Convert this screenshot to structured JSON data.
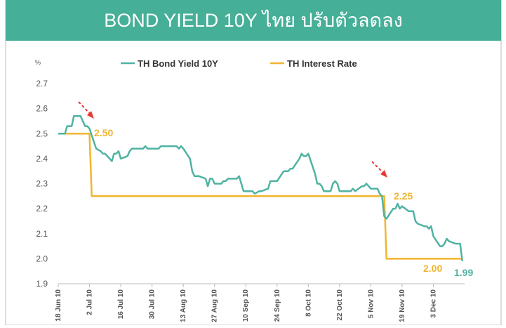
{
  "chart_data": {
    "type": "line",
    "title": "BOND YIELD 10Y ไทย ปรับตัวลดลง",
    "y_label": "%",
    "ylim": [
      1.9,
      2.7
    ],
    "yticks": [
      {
        "value": 1.9,
        "label": "1.9"
      },
      {
        "value": 2.0,
        "label": "2.0"
      },
      2.1,
      2.2,
      2.3,
      2.4,
      2.5,
      2.6,
      2.7
    ],
    "xlim": [
      "2010-06-18",
      "2010-12-17"
    ],
    "xticks": [
      {
        "value": "2010-06-18",
        "label": "18 Jun 10"
      },
      {
        "value": "2010-07-02",
        "label": "2 Jul 10"
      },
      {
        "value": "2010-07-16",
        "label": "16 Jul 10"
      },
      {
        "value": "2010-07-30",
        "label": "30 Jul 10"
      },
      {
        "value": "2010-08-13",
        "label": "13 Aug 10"
      },
      {
        "value": "2010-08-27",
        "label": "27 Aug 10"
      },
      {
        "value": "2010-09-10",
        "label": "10 Sep 10"
      },
      {
        "value": "2010-09-24",
        "label": "24 Sep 10"
      },
      {
        "value": "2010-10-08",
        "label": "8 Oct 10"
      },
      {
        "value": "2010-10-22",
        "label": "22 Oct 10"
      },
      {
        "value": "2010-11-05",
        "label": "5 Nov 10"
      },
      {
        "value": "2010-11-19",
        "label": "19 Nov 10"
      },
      {
        "value": "2010-12-03",
        "label": "3 Dec 10"
      }
    ],
    "legend": "top",
    "series": [
      {
        "name": "TH Bond Yield 10Y",
        "color": "#4fb3a2",
        "x": [
          "2010-06-18",
          "2010-06-21",
          "2010-06-22",
          "2010-06-24",
          "2010-06-25",
          "2010-06-28",
          "2010-06-29",
          "2010-06-30",
          "2010-07-01",
          "2010-07-02",
          "2010-07-05",
          "2010-07-07",
          "2010-07-08",
          "2010-07-09",
          "2010-07-12",
          "2010-07-13",
          "2010-07-14",
          "2010-07-15",
          "2010-07-16",
          "2010-07-19",
          "2010-07-20",
          "2010-07-21",
          "2010-07-22",
          "2010-07-26",
          "2010-07-27",
          "2010-07-28",
          "2010-07-30",
          "2010-08-02",
          "2010-08-03",
          "2010-08-05",
          "2010-08-10",
          "2010-08-11",
          "2010-08-12",
          "2010-08-13",
          "2010-08-16",
          "2010-08-17",
          "2010-08-18",
          "2010-08-20",
          "2010-08-23",
          "2010-08-24",
          "2010-08-25",
          "2010-08-26",
          "2010-08-27",
          "2010-08-30",
          "2010-08-31",
          "2010-09-01",
          "2010-09-02",
          "2010-09-03",
          "2010-09-06",
          "2010-09-07",
          "2010-09-08",
          "2010-09-09",
          "2010-09-13",
          "2010-09-14",
          "2010-09-16",
          "2010-09-17",
          "2010-09-20",
          "2010-09-21",
          "2010-09-22",
          "2010-09-24",
          "2010-09-27",
          "2010-09-28",
          "2010-09-29",
          "2010-09-30",
          "2010-10-01",
          "2010-10-04",
          "2010-10-05",
          "2010-10-06",
          "2010-10-07",
          "2010-10-08",
          "2010-10-11",
          "2010-10-12",
          "2010-10-13",
          "2010-10-14",
          "2010-10-15",
          "2010-10-18",
          "2010-10-19",
          "2010-10-20",
          "2010-10-21",
          "2010-10-22",
          "2010-10-25",
          "2010-10-27",
          "2010-10-28",
          "2010-10-29",
          "2010-11-01",
          "2010-11-02",
          "2010-11-03",
          "2010-11-04",
          "2010-11-05",
          "2010-11-08",
          "2010-11-09",
          "2010-11-10",
          "2010-11-11",
          "2010-11-12",
          "2010-11-15",
          "2010-11-16",
          "2010-11-17",
          "2010-11-18",
          "2010-11-19",
          "2010-11-22",
          "2010-11-23",
          "2010-11-24",
          "2010-11-25",
          "2010-11-26",
          "2010-11-29",
          "2010-11-30",
          "2010-12-01",
          "2010-12-02",
          "2010-12-03",
          "2010-12-06",
          "2010-12-07",
          "2010-12-08",
          "2010-12-09",
          "2010-12-10",
          "2010-12-13",
          "2010-12-14",
          "2010-12-15",
          "2010-12-16"
        ],
        "values": [
          2.5,
          2.5,
          2.53,
          2.53,
          2.57,
          2.57,
          2.55,
          2.53,
          2.53,
          2.52,
          2.44,
          2.43,
          2.42,
          2.42,
          2.39,
          2.42,
          2.42,
          2.43,
          2.4,
          2.41,
          2.43,
          2.44,
          2.44,
          2.44,
          2.45,
          2.44,
          2.44,
          2.44,
          2.45,
          2.45,
          2.45,
          2.44,
          2.45,
          2.44,
          2.4,
          2.35,
          2.33,
          2.33,
          2.32,
          2.29,
          2.32,
          2.32,
          2.3,
          2.3,
          2.31,
          2.31,
          2.32,
          2.32,
          2.32,
          2.33,
          2.3,
          2.27,
          2.27,
          2.26,
          2.27,
          2.27,
          2.28,
          2.31,
          2.31,
          2.31,
          2.35,
          2.35,
          2.35,
          2.36,
          2.36,
          2.4,
          2.42,
          2.41,
          2.41,
          2.42,
          2.34,
          2.3,
          2.3,
          2.29,
          2.27,
          2.27,
          2.3,
          2.31,
          2.3,
          2.27,
          2.27,
          2.27,
          2.28,
          2.27,
          2.29,
          2.29,
          2.3,
          2.29,
          2.28,
          2.28,
          2.26,
          2.25,
          2.17,
          2.16,
          2.2,
          2.2,
          2.22,
          2.2,
          2.21,
          2.19,
          2.19,
          2.19,
          2.15,
          2.14,
          2.13,
          2.13,
          2.12,
          2.13,
          2.09,
          2.05,
          2.05,
          2.06,
          2.08,
          2.07,
          2.06,
          2.06,
          2.06,
          1.99
        ]
      },
      {
        "name": "TH Interest Rate",
        "color": "#f1b52e",
        "x": [
          "2010-06-18",
          "2010-07-02",
          "2010-07-03",
          "2010-11-11",
          "2010-11-12",
          "2010-12-16"
        ],
        "values": [
          2.5,
          2.5,
          2.25,
          2.25,
          2.0,
          2.0
        ]
      }
    ],
    "annotations": [
      {
        "text": "2.50",
        "color": "#f1b52e"
      },
      {
        "text": "2.25",
        "color": "#f1b52e"
      },
      {
        "text": "2.00",
        "color": "#f1b52e"
      },
      {
        "text": "1.99",
        "color": "#4fb3a2"
      }
    ]
  }
}
